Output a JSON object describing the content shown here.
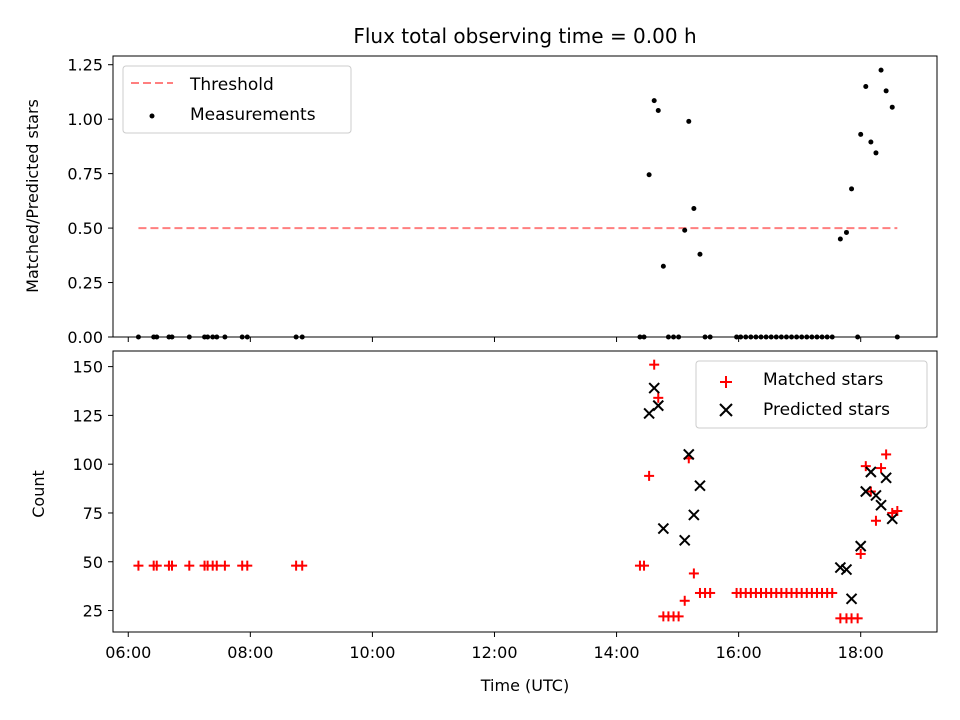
{
  "figure": {
    "title": "Flux total observing time = 0.00 h",
    "xlabel": "Time (UTC)"
  },
  "chart_data": [
    {
      "type": "scatter",
      "panel": "top",
      "ylabel": "Matched/Predicted stars",
      "xlim": [
        "05:45",
        "19:15"
      ],
      "ylim": [
        0,
        1.29
      ],
      "yticks": [
        "0.00",
        "0.25",
        "0.50",
        "0.75",
        "1.00",
        "1.25"
      ],
      "ytick_values": [
        0,
        0.25,
        0.5,
        0.75,
        1.0,
        1.25
      ],
      "legend_position": "upper left",
      "threshold": {
        "name": "Threshold",
        "value": 0.5,
        "x_range": [
          "06:10",
          "18:36"
        ],
        "color": "#ff7f7f"
      },
      "series": [
        {
          "name": "Measurements",
          "color": "#000000",
          "points": [
            [
              "06:10",
              0
            ],
            [
              "06:25",
              0
            ],
            [
              "06:28",
              0
            ],
            [
              "06:40",
              0
            ],
            [
              "06:43",
              0
            ],
            [
              "07:00",
              0
            ],
            [
              "07:15",
              0
            ],
            [
              "07:18",
              0
            ],
            [
              "07:23",
              0
            ],
            [
              "07:27",
              0
            ],
            [
              "07:35",
              0
            ],
            [
              "07:52",
              0
            ],
            [
              "07:57",
              0
            ],
            [
              "08:45",
              0
            ],
            [
              "08:51",
              0
            ],
            [
              "14:23",
              0
            ],
            [
              "14:27",
              0
            ],
            [
              "14:32",
              0.745
            ],
            [
              "14:37",
              1.085
            ],
            [
              "14:41",
              1.04
            ],
            [
              "14:46",
              0.325
            ],
            [
              "14:51",
              0
            ],
            [
              "14:56",
              0
            ],
            [
              "15:01",
              0
            ],
            [
              "15:07",
              0.49
            ],
            [
              "15:11",
              0.99
            ],
            [
              "15:16",
              0.59
            ],
            [
              "15:22",
              0.38
            ],
            [
              "15:27",
              0
            ],
            [
              "15:32",
              0
            ],
            [
              "15:58",
              0
            ],
            [
              "16:02",
              0
            ],
            [
              "16:07",
              0
            ],
            [
              "16:12",
              0
            ],
            [
              "16:17",
              0
            ],
            [
              "16:22",
              0
            ],
            [
              "16:27",
              0
            ],
            [
              "16:32",
              0
            ],
            [
              "16:37",
              0
            ],
            [
              "16:42",
              0
            ],
            [
              "16:47",
              0
            ],
            [
              "16:52",
              0
            ],
            [
              "16:57",
              0
            ],
            [
              "17:02",
              0
            ],
            [
              "17:07",
              0
            ],
            [
              "17:12",
              0
            ],
            [
              "17:17",
              0
            ],
            [
              "17:22",
              0
            ],
            [
              "17:27",
              0
            ],
            [
              "17:32",
              0
            ],
            [
              "17:40",
              0.45
            ],
            [
              "17:46",
              0.48
            ],
            [
              "17:51",
              0.68
            ],
            [
              "17:57",
              0
            ],
            [
              "18:00",
              0.93
            ],
            [
              "18:05",
              1.15
            ],
            [
              "18:10",
              0.895
            ],
            [
              "18:15",
              0.845
            ],
            [
              "18:20",
              1.225
            ],
            [
              "18:25",
              1.13
            ],
            [
              "18:31",
              1.055
            ],
            [
              "18:36",
              0
            ]
          ]
        }
      ]
    },
    {
      "type": "scatter",
      "panel": "bottom",
      "ylabel": "Count",
      "xlim": [
        "05:45",
        "19:15"
      ],
      "ylim": [
        14,
        158
      ],
      "xticks": [
        "06:00",
        "08:00",
        "10:00",
        "12:00",
        "14:00",
        "16:00",
        "18:00"
      ],
      "yticks": [
        "25",
        "50",
        "75",
        "100",
        "125",
        "150"
      ],
      "ytick_values": [
        25,
        50,
        75,
        100,
        125,
        150
      ],
      "legend_position": "upper right",
      "series": [
        {
          "name": "Matched stars",
          "marker": "+",
          "color": "#ff0000",
          "points": [
            [
              "06:10",
              48
            ],
            [
              "06:25",
              48
            ],
            [
              "06:28",
              48
            ],
            [
              "06:40",
              48
            ],
            [
              "06:43",
              48
            ],
            [
              "07:00",
              48
            ],
            [
              "07:15",
              48
            ],
            [
              "07:18",
              48
            ],
            [
              "07:23",
              48
            ],
            [
              "07:27",
              48
            ],
            [
              "07:35",
              48
            ],
            [
              "07:52",
              48
            ],
            [
              "07:57",
              48
            ],
            [
              "08:45",
              48
            ],
            [
              "08:51",
              48
            ],
            [
              "14:23",
              48
            ],
            [
              "14:27",
              48
            ],
            [
              "14:32",
              94
            ],
            [
              "14:37",
              151
            ],
            [
              "14:41",
              134
            ],
            [
              "14:46",
              22
            ],
            [
              "14:51",
              22
            ],
            [
              "14:56",
              22
            ],
            [
              "15:01",
              22
            ],
            [
              "15:07",
              30
            ],
            [
              "15:11",
              103
            ],
            [
              "15:16",
              44
            ],
            [
              "15:22",
              34
            ],
            [
              "15:27",
              34
            ],
            [
              "15:32",
              34
            ],
            [
              "15:58",
              34
            ],
            [
              "16:02",
              34
            ],
            [
              "16:07",
              34
            ],
            [
              "16:12",
              34
            ],
            [
              "16:17",
              34
            ],
            [
              "16:22",
              34
            ],
            [
              "16:27",
              34
            ],
            [
              "16:32",
              34
            ],
            [
              "16:37",
              34
            ],
            [
              "16:42",
              34
            ],
            [
              "16:47",
              34
            ],
            [
              "16:52",
              34
            ],
            [
              "16:57",
              34
            ],
            [
              "17:02",
              34
            ],
            [
              "17:07",
              34
            ],
            [
              "17:12",
              34
            ],
            [
              "17:17",
              34
            ],
            [
              "17:22",
              34
            ],
            [
              "17:27",
              34
            ],
            [
              "17:32",
              34
            ],
            [
              "17:40",
              21
            ],
            [
              "17:46",
              21
            ],
            [
              "17:51",
              21
            ],
            [
              "17:57",
              21
            ],
            [
              "18:00",
              54
            ],
            [
              "18:05",
              99
            ],
            [
              "18:10",
              86
            ],
            [
              "18:15",
              71
            ],
            [
              "18:20",
              98
            ],
            [
              "18:25",
              105
            ],
            [
              "18:31",
              75
            ],
            [
              "18:36",
              76
            ]
          ]
        },
        {
          "name": "Predicted stars",
          "marker": "x",
          "color": "#000000",
          "points": [
            [
              "14:32",
              126
            ],
            [
              "14:37",
              139
            ],
            [
              "14:41",
              130
            ],
            [
              "14:46",
              67
            ],
            [
              "15:07",
              61
            ],
            [
              "15:11",
              105
            ],
            [
              "15:16",
              74
            ],
            [
              "15:22",
              89
            ],
            [
              "17:40",
              47
            ],
            [
              "17:46",
              46
            ],
            [
              "17:51",
              31
            ],
            [
              "18:00",
              58
            ],
            [
              "18:05",
              86
            ],
            [
              "18:10",
              96
            ],
            [
              "18:15",
              84
            ],
            [
              "18:20",
              79
            ],
            [
              "18:25",
              93
            ],
            [
              "18:31",
              72
            ]
          ]
        }
      ]
    }
  ]
}
